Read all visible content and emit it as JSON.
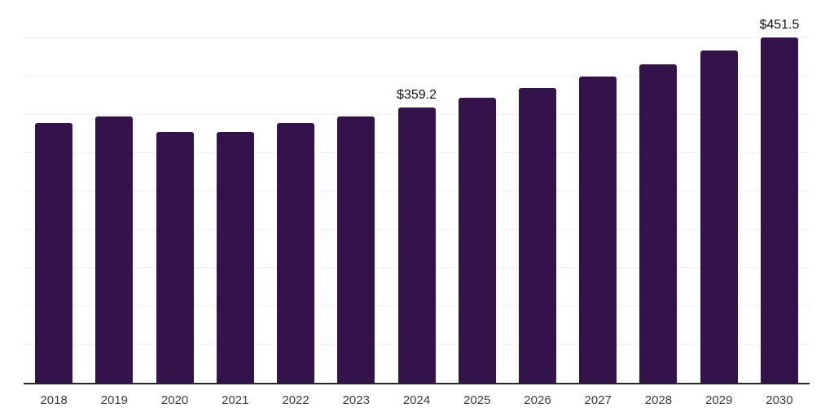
{
  "chart_data": {
    "type": "bar",
    "title": "",
    "xlabel": "",
    "ylabel": "",
    "categories": [
      "2018",
      "2019",
      "2020",
      "2021",
      "2022",
      "2023",
      "2024",
      "2025",
      "2026",
      "2027",
      "2028",
      "2029",
      "2030"
    ],
    "values": [
      339,
      348,
      328,
      328,
      339,
      348,
      359.2,
      372,
      385,
      400,
      416,
      434,
      451.5
    ],
    "point_labels": {
      "2024": "$359.2",
      "2030": "$451.5"
    },
    "ylim": [
      0,
      500
    ],
    "gridline_step": 50,
    "grid": "horizontal",
    "legend": "none",
    "colors": {
      "bar": "#331349",
      "gridline": "#f1f1f1",
      "axis": "#262626",
      "tick_text": "#3d3d3d",
      "label_text": "#111111"
    }
  }
}
